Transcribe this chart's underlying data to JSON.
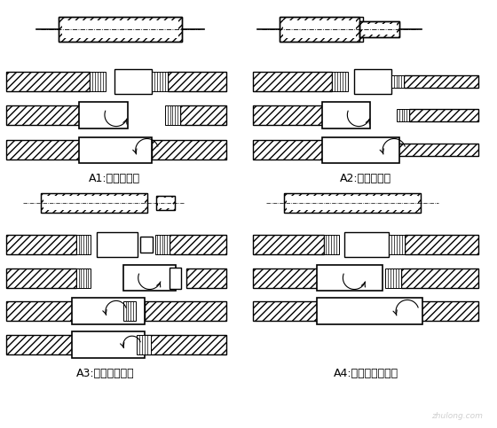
{
  "labels": {
    "A1": "A1:标准型接头",
    "A2": "A2:异径型接头",
    "A3": "A3:加锁母型接头",
    "A4": "A4:正反丝扣型接头"
  },
  "bg_color": "#ffffff",
  "line_color": "#000000",
  "label_fontsize": 9,
  "fig_width": 5.6,
  "fig_height": 4.83,
  "dpi": 100
}
